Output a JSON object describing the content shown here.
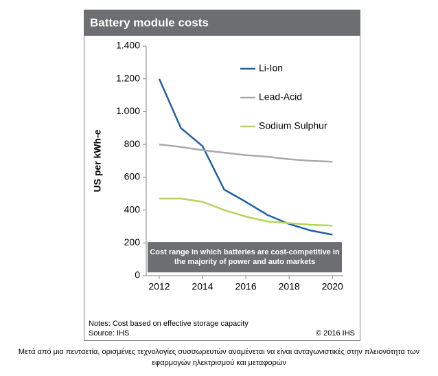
{
  "chart_data": {
    "type": "line",
    "title": "Battery module costs",
    "y_label": "US per kWh-e",
    "x": [
      2012,
      2013,
      2014,
      2015,
      2016,
      2017,
      2018,
      2019,
      2020
    ],
    "series": [
      {
        "name": "Li-Ion",
        "color": "#1f5fa0",
        "values": [
          1200,
          900,
          790,
          525,
          450,
          370,
          315,
          275,
          250
        ]
      },
      {
        "name": "Lead-Acid",
        "color": "#a7a9ac",
        "values": [
          800,
          785,
          765,
          750,
          735,
          725,
          710,
          700,
          695
        ]
      },
      {
        "name": "Sodium Sulphur",
        "color": "#b5d35b",
        "values": [
          470,
          470,
          450,
          400,
          360,
          330,
          320,
          310,
          305
        ]
      }
    ],
    "xlim": [
      2011.4,
      2020.5
    ],
    "xticks": [
      2012,
      2014,
      2016,
      2018,
      2020
    ],
    "ylim": [
      0,
      1400
    ],
    "yticks": [
      0,
      200,
      400,
      600,
      800,
      {
        "value": 1000,
        "label": "1.000"
      },
      {
        "value": 1200,
        "label": "1.200"
      },
      {
        "value": 1400,
        "label": "1.400"
      }
    ],
    "grid": false,
    "legend": "top-right",
    "annotation": {
      "lines": [
        "Cost range in which batteries are cost-competitive in",
        "the majority of power and auto markets"
      ],
      "range": [
        20,
        205
      ]
    },
    "notes": "Notes: Cost based on effective storage capacity",
    "source": "Source: IHS",
    "copyright": "© 2016 IHS"
  },
  "caption": [
    "Μετά από μια πενταετία, ορισμένες τεχνολογίες συσσωρευτών αναμένεται να είναι ανταγωνιστικές στην πλειονότητα των",
    "εφαρμογών ηλεκτρισμού και μεταφορών"
  ]
}
